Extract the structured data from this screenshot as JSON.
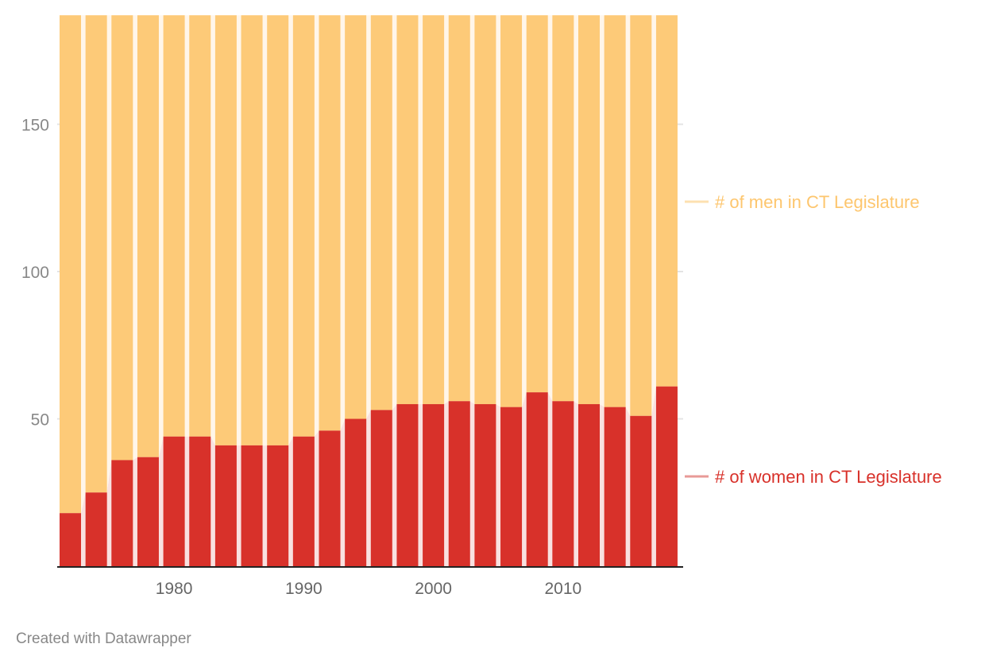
{
  "chart_data": {
    "type": "bar",
    "stacked": true,
    "x": [
      1972,
      1974,
      1976,
      1978,
      1980,
      1982,
      1984,
      1986,
      1988,
      1990,
      1992,
      1994,
      1996,
      1998,
      2000,
      2002,
      2004,
      2006,
      2008,
      2010,
      2012,
      2014,
      2016,
      2018
    ],
    "series": [
      {
        "name": "# of women in CT Legislature",
        "color": "#d8312a",
        "values": [
          18,
          25,
          36,
          37,
          44,
          44,
          41,
          41,
          41,
          44,
          46,
          50,
          53,
          55,
          55,
          56,
          55,
          54,
          59,
          56,
          55,
          54,
          51,
          61
        ]
      },
      {
        "name": "# of men in CT Legislature",
        "color": "#fdca78",
        "values": [
          169,
          162,
          151,
          150,
          143,
          143,
          146,
          146,
          146,
          143,
          141,
          137,
          134,
          132,
          132,
          131,
          132,
          133,
          128,
          131,
          132,
          133,
          136,
          126
        ]
      }
    ],
    "y_ticks": [
      50,
      100,
      150
    ],
    "x_ticks": [
      1980,
      1990,
      2000,
      2010
    ],
    "ylim": [
      0,
      187
    ],
    "grid": true,
    "legend": "right, inline labels"
  },
  "footer": {
    "credit": "Created with Datawrapper"
  }
}
